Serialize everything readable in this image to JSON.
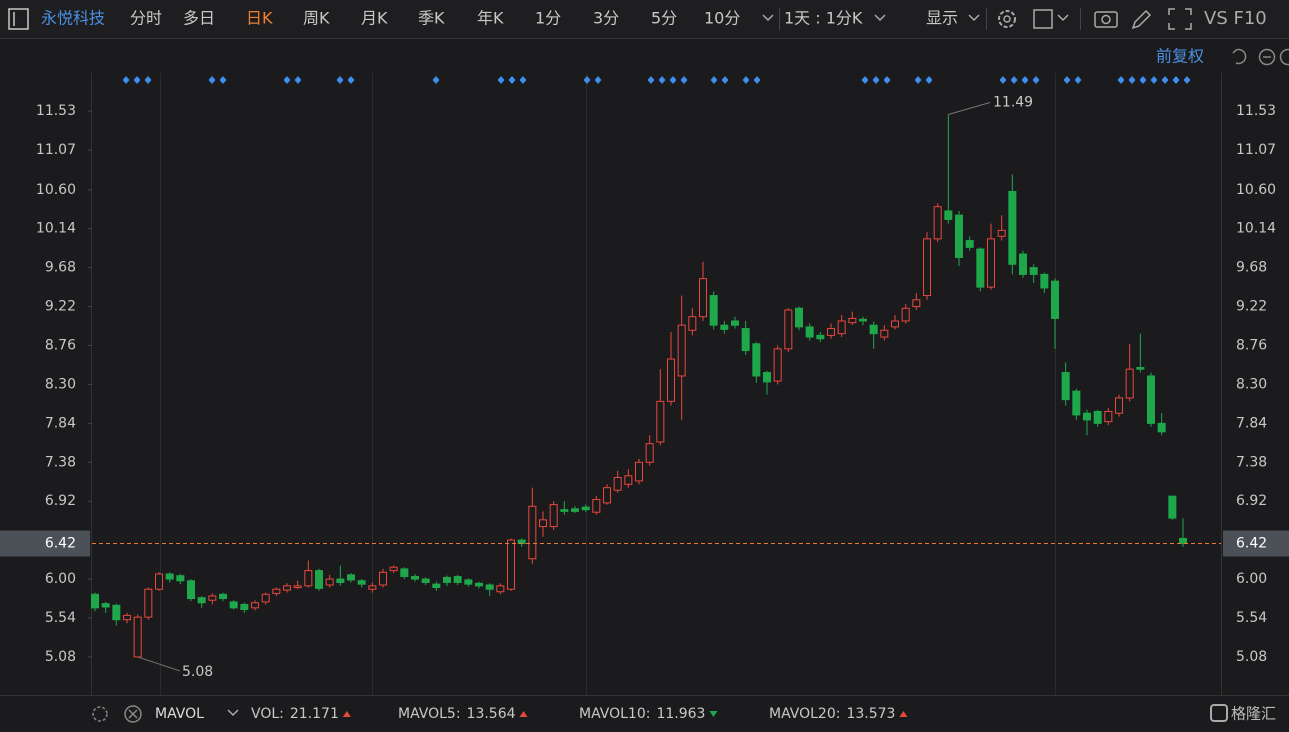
{
  "toolbar": {
    "stock": "永悦科技",
    "periods": [
      "分时",
      "多日",
      "日K",
      "周K",
      "月K",
      "季K",
      "年K",
      "1分",
      "3分",
      "5分",
      "10分"
    ],
    "active_period": 2,
    "interval": "1天 : 1分K",
    "display": "显示",
    "tools": "VS F10"
  },
  "adjust": "前复权",
  "chart_data": {
    "type": "candlestick",
    "open": [
      5.82,
      5.71,
      5.69,
      5.52,
      5.08,
      5.55,
      5.88,
      6.06,
      6.04,
      5.98,
      5.78,
      5.75,
      5.82,
      5.73,
      5.7,
      5.66,
      5.73,
      5.83,
      5.87,
      5.9,
      5.92,
      6.1,
      5.93,
      6.0,
      6.05,
      5.98,
      5.88,
      5.93,
      6.1,
      6.12,
      6.03,
      6.0,
      5.94,
      6.02,
      6.03,
      5.99,
      5.95,
      5.93,
      5.85,
      5.88,
      6.46,
      6.24,
      6.62,
      6.62,
      6.82,
      6.83,
      6.85,
      6.79,
      6.9,
      7.05,
      7.12,
      7.16,
      7.38,
      7.62,
      8.1,
      8.4,
      8.94,
      9.1,
      9.35,
      9.0,
      9.05,
      8.96,
      8.78,
      8.44,
      8.34,
      8.72,
      9.2,
      8.98,
      8.88,
      8.88,
      8.9,
      9.03,
      9.07,
      9.0,
      8.86,
      8.98,
      9.05,
      9.22,
      9.35,
      10.02,
      10.35,
      10.3,
      10.0,
      9.9,
      9.45,
      10.05,
      10.58,
      9.84,
      9.68,
      9.6,
      9.52,
      8.44,
      8.22,
      7.96,
      7.98,
      7.86,
      7.96,
      8.14,
      8.5,
      8.4,
      7.84,
      6.98,
      6.48
    ],
    "high": [
      5.84,
      5.73,
      5.71,
      5.6,
      5.58,
      5.9,
      6.08,
      6.08,
      6.06,
      6.0,
      5.8,
      5.83,
      5.84,
      5.75,
      5.72,
      5.75,
      5.84,
      5.9,
      5.95,
      5.98,
      6.22,
      6.12,
      6.05,
      6.16,
      6.07,
      6.0,
      5.96,
      6.12,
      6.16,
      6.14,
      6.06,
      6.02,
      5.97,
      6.04,
      6.05,
      6.01,
      5.97,
      5.95,
      5.95,
      6.48,
      6.48,
      7.08,
      6.8,
      6.92,
      6.92,
      6.86,
      6.88,
      6.98,
      7.12,
      7.28,
      7.3,
      7.42,
      7.7,
      8.48,
      8.92,
      9.35,
      9.2,
      9.75,
      9.4,
      9.05,
      9.1,
      9.05,
      8.8,
      8.46,
      8.76,
      9.2,
      9.22,
      9.02,
      8.92,
      9.02,
      9.12,
      9.16,
      9.1,
      9.04,
      9.0,
      9.12,
      9.25,
      9.38,
      10.1,
      10.44,
      11.49,
      10.35,
      10.05,
      9.92,
      10.2,
      10.3,
      10.78,
      9.88,
      9.72,
      9.62,
      9.55,
      8.56,
      8.25,
      8.0,
      8.0,
      8.02,
      8.18,
      8.78,
      8.9,
      8.44,
      7.96,
      6.98,
      6.72
    ],
    "low": [
      5.62,
      5.6,
      5.45,
      5.48,
      5.08,
      5.52,
      5.86,
      5.96,
      5.94,
      5.74,
      5.66,
      5.7,
      5.74,
      5.64,
      5.6,
      5.63,
      5.7,
      5.8,
      5.84,
      5.88,
      5.9,
      5.86,
      5.9,
      5.92,
      5.96,
      5.9,
      5.84,
      5.9,
      6.07,
      6.0,
      5.97,
      5.93,
      5.86,
      5.92,
      5.93,
      5.91,
      5.89,
      5.8,
      5.82,
      5.86,
      6.38,
      6.18,
      6.5,
      6.58,
      6.76,
      6.78,
      6.79,
      6.76,
      6.88,
      7.02,
      7.08,
      7.12,
      7.34,
      7.58,
      8.05,
      7.88,
      8.88,
      9.05,
      8.95,
      8.9,
      8.96,
      8.65,
      8.32,
      8.18,
      8.3,
      8.68,
      8.94,
      8.82,
      8.8,
      8.84,
      8.86,
      9.0,
      9.0,
      8.72,
      8.82,
      8.95,
      9.02,
      9.18,
      9.3,
      9.98,
      10.2,
      9.7,
      9.88,
      9.4,
      9.42,
      10.0,
      9.6,
      9.56,
      9.5,
      9.38,
      8.72,
      8.05,
      7.88,
      7.7,
      7.8,
      7.82,
      7.92,
      8.1,
      8.44,
      7.8,
      7.7,
      6.7,
      6.38
    ],
    "close": [
      5.66,
      5.67,
      5.52,
      5.57,
      5.55,
      5.88,
      6.06,
      6.0,
      5.98,
      5.77,
      5.72,
      5.8,
      5.77,
      5.66,
      5.64,
      5.72,
      5.82,
      5.88,
      5.92,
      5.92,
      6.1,
      5.89,
      6.0,
      5.96,
      5.99,
      5.94,
      5.92,
      6.08,
      6.14,
      6.03,
      6.0,
      5.96,
      5.9,
      5.96,
      5.96,
      5.94,
      5.92,
      5.88,
      5.92,
      6.46,
      6.42,
      6.86,
      6.7,
      6.88,
      6.8,
      6.8,
      6.82,
      6.94,
      7.08,
      7.2,
      7.22,
      7.38,
      7.6,
      8.1,
      8.6,
      9.0,
      9.1,
      9.55,
      9.0,
      8.95,
      9.0,
      8.7,
      8.4,
      8.33,
      8.72,
      9.18,
      8.98,
      8.86,
      8.84,
      8.96,
      9.05,
      9.08,
      9.05,
      8.9,
      8.94,
      9.05,
      9.2,
      9.3,
      10.02,
      10.4,
      10.25,
      9.8,
      9.92,
      9.45,
      10.02,
      10.12,
      9.72,
      9.6,
      9.6,
      9.44,
      9.08,
      8.12,
      7.94,
      7.88,
      7.84,
      7.98,
      8.14,
      8.48,
      8.48,
      7.84,
      7.74,
      6.72,
      6.42
    ],
    "colors": {
      "up": "#e8473c",
      "down": "#1fa84b"
    },
    "ylim": [
      4.63,
      11.98
    ],
    "yticks": [
      11.53,
      11.07,
      {
        "value": 10.6,
        "label": "10.60"
      },
      10.14,
      9.68,
      9.22,
      8.76,
      {
        "value": 8.3,
        "label": "8.30"
      },
      7.84,
      7.38,
      6.92,
      {
        "value": 6,
        "label": "6.00"
      },
      5.54,
      5.08
    ],
    "last_price": 6.42,
    "high_label": 11.49,
    "low_label": 5.08
  },
  "indicator": {
    "name": "MAVOL",
    "items": [
      {
        "name": "VOL:",
        "value": 21.171,
        "color": "#ff5a4f"
      },
      {
        "name": "MAVOL5:",
        "value": 13.564,
        "color": "#f08a2c"
      },
      {
        "name": "MAVOL10:",
        "value": 11.963,
        "color": "#3ba3e6"
      },
      {
        "name": "MAVOL20:",
        "value": 13.573,
        "color": "#e24fd0"
      }
    ]
  },
  "brand": "格隆汇"
}
